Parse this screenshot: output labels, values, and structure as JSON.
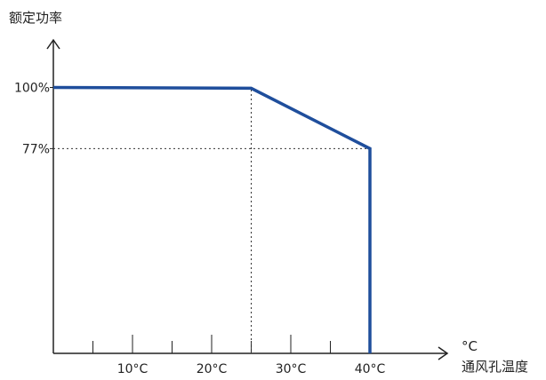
{
  "chart_data": {
    "type": "line",
    "title": "",
    "ylabel": "额定功率",
    "xunit": "°C",
    "xlabel": "通风孔温度",
    "x_ticks": [
      {
        "value": 10,
        "label": "10°C"
      },
      {
        "value": 20,
        "label": "20°C"
      },
      {
        "value": 30,
        "label": "30°C"
      },
      {
        "value": 40,
        "label": "40°C"
      }
    ],
    "y_ticks": [
      {
        "value": 100,
        "label": "100%"
      },
      {
        "value": 77,
        "label": "77%"
      }
    ],
    "series": [
      {
        "color": "#1f4e9c",
        "points": [
          [
            0,
            100
          ],
          [
            25,
            99.7
          ],
          [
            40,
            77
          ],
          [
            40,
            0
          ]
        ]
      }
    ],
    "reference_lines": [
      {
        "type": "vertical",
        "x": 25,
        "y_from": 0,
        "y_to": 99.7
      },
      {
        "type": "horizontal",
        "y": 77,
        "x_from": 0,
        "x_to": 40
      }
    ],
    "xlim": [
      0,
      49
    ],
    "ylim": [
      0,
      115
    ],
    "grid": false,
    "legend": "none"
  }
}
